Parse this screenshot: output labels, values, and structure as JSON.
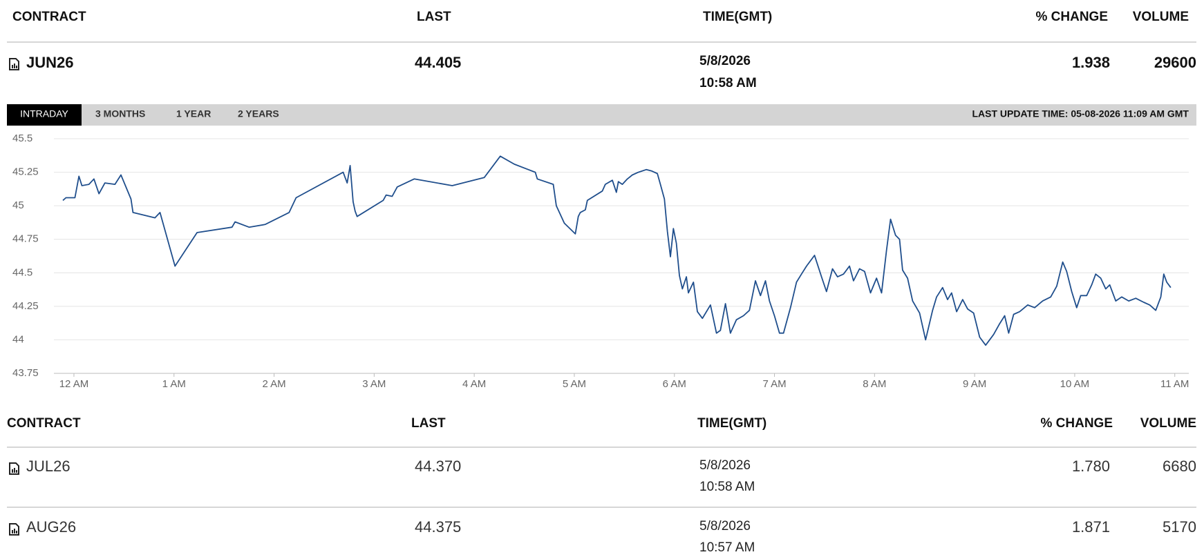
{
  "header_table": {
    "columns": [
      "CONTRACT",
      "LAST",
      "TIME(GMT)",
      "% CHANGE",
      "VOLUME"
    ],
    "row": [
      "JUN26",
      "44.405",
      "5/8/2026",
      "10:58 AM",
      "1.938",
      "29600"
    ]
  },
  "tabs": [
    "INTRADAY",
    "3 MONTHS",
    "1 YEAR",
    "2 YEARS"
  ],
  "last_update": "LAST UPDATE TIME: 05-08-2026 11:09 AM GMT",
  "chart_data": {
    "type": "line",
    "color": "#1f4e8c",
    "grid": true,
    "xlim": [
      -0.2,
      11.14
    ],
    "ylim": [
      43.75,
      45.5
    ],
    "xticks": [
      {
        "value": 0,
        "label": "12 AM"
      },
      {
        "value": 1,
        "label": "1 AM"
      },
      {
        "value": 2,
        "label": "2 AM"
      },
      {
        "value": 3,
        "label": "3 AM"
      },
      {
        "value": 4,
        "label": "4 AM"
      },
      {
        "value": 5,
        "label": "5 AM"
      },
      {
        "value": 6,
        "label": "6 AM"
      },
      {
        "value": 7,
        "label": "7 AM"
      },
      {
        "value": 8,
        "label": "8 AM"
      },
      {
        "value": 9,
        "label": "9 AM"
      },
      {
        "value": 10,
        "label": "10 AM"
      },
      {
        "value": 11,
        "label": "11 AM"
      }
    ],
    "yticks": [
      43.75,
      44,
      44.25,
      44.5,
      44.75,
      45,
      45.25,
      45.5
    ],
    "x": [
      -0.11,
      -0.08,
      0.01,
      0.05,
      0.08,
      0.15,
      0.2,
      0.25,
      0.31,
      0.41,
      0.47,
      0.57,
      0.59,
      0.81,
      0.86,
      1.01,
      1.23,
      1.58,
      1.61,
      1.75,
      1.91,
      2.15,
      2.22,
      2.69,
      2.73,
      2.76,
      2.79,
      2.81,
      2.83,
      3.09,
      3.12,
      3.18,
      3.23,
      3.4,
      3.78,
      4.1,
      4.26,
      4.4,
      4.61,
      4.63,
      4.79,
      4.82,
      4.9,
      5.01,
      5.04,
      5.06,
      5.11,
      5.13,
      5.28,
      5.31,
      5.38,
      5.42,
      5.44,
      5.48,
      5.53,
      5.58,
      5.64,
      5.72,
      5.77,
      5.83,
      5.86,
      5.9,
      5.93,
      5.96,
      5.99,
      6.02,
      6.05,
      6.08,
      6.12,
      6.14,
      6.19,
      6.23,
      6.28,
      6.36,
      6.42,
      6.46,
      6.51,
      6.56,
      6.62,
      6.69,
      6.75,
      6.81,
      6.86,
      6.91,
      6.95,
      7.0,
      7.05,
      7.09,
      7.16,
      7.22,
      7.27,
      7.32,
      7.4,
      7.47,
      7.52,
      7.58,
      7.63,
      7.69,
      7.75,
      7.79,
      7.85,
      7.9,
      7.96,
      8.02,
      8.07,
      8.12,
      8.16,
      8.21,
      8.25,
      8.28,
      8.33,
      8.38,
      8.45,
      8.51,
      8.58,
      8.62,
      8.68,
      8.73,
      8.77,
      8.82,
      8.88,
      8.93,
      8.99,
      9.05,
      9.11,
      9.19,
      9.25,
      9.3,
      9.34,
      9.39,
      9.45,
      9.53,
      9.6,
      9.68,
      9.76,
      9.82,
      9.88,
      9.92,
      9.97,
      10.02,
      10.06,
      10.12,
      10.17,
      10.21,
      10.26,
      10.31,
      10.35,
      10.41,
      10.47,
      10.54,
      10.61,
      10.69,
      10.75,
      10.81,
      10.86,
      10.89,
      10.92,
      10.96
    ],
    "values": [
      45.04,
      45.06,
      45.06,
      45.22,
      45.15,
      45.16,
      45.2,
      45.09,
      45.17,
      45.16,
      45.23,
      45.05,
      44.95,
      44.91,
      44.95,
      44.55,
      44.8,
      44.84,
      44.88,
      44.84,
      44.86,
      44.95,
      45.06,
      45.25,
      45.17,
      45.3,
      45.03,
      44.96,
      44.92,
      45.04,
      45.08,
      45.07,
      45.14,
      45.2,
      45.15,
      45.21,
      45.37,
      45.31,
      45.25,
      45.2,
      45.16,
      45.0,
      44.87,
      44.79,
      44.92,
      44.95,
      44.97,
      45.04,
      45.11,
      45.16,
      45.19,
      45.1,
      45.18,
      45.16,
      45.2,
      45.23,
      45.25,
      45.27,
      45.26,
      45.24,
      45.16,
      45.05,
      44.81,
      44.62,
      44.83,
      44.72,
      44.48,
      44.38,
      44.47,
      44.35,
      44.43,
      44.21,
      44.16,
      44.26,
      44.05,
      44.07,
      44.27,
      44.05,
      44.15,
      44.18,
      44.22,
      44.44,
      44.33,
      44.44,
      44.29,
      44.18,
      44.05,
      44.05,
      44.24,
      44.43,
      44.49,
      44.55,
      44.63,
      44.47,
      44.36,
      44.53,
      44.47,
      44.49,
      44.55,
      44.44,
      44.53,
      44.51,
      44.35,
      44.46,
      44.35,
      44.67,
      44.9,
      44.78,
      44.75,
      44.52,
      44.46,
      44.29,
      44.2,
      44.0,
      44.22,
      44.32,
      44.39,
      44.3,
      44.35,
      44.21,
      44.3,
      44.23,
      44.2,
      44.02,
      43.96,
      44.04,
      44.12,
      44.18,
      44.05,
      44.19,
      44.21,
      44.26,
      44.24,
      44.29,
      44.32,
      44.4,
      44.58,
      44.51,
      44.36,
      44.24,
      44.33,
      44.33,
      44.41,
      44.49,
      44.46,
      44.38,
      44.41,
      44.29,
      44.32,
      44.29,
      44.31,
      44.28,
      44.26,
      44.22,
      44.32,
      44.49,
      44.43,
      44.39
    ]
  },
  "contracts_table": {
    "columns": [
      "CONTRACT",
      "LAST",
      "TIME(GMT)",
      "% CHANGE",
      "VOLUME"
    ],
    "rows": [
      [
        "JUL26",
        "44.370",
        "5/8/2026",
        "10:58 AM",
        "1.780",
        "6680"
      ],
      [
        "AUG26",
        "44.375",
        "5/8/2026",
        "10:57 AM",
        "1.871",
        "5170"
      ]
    ]
  }
}
